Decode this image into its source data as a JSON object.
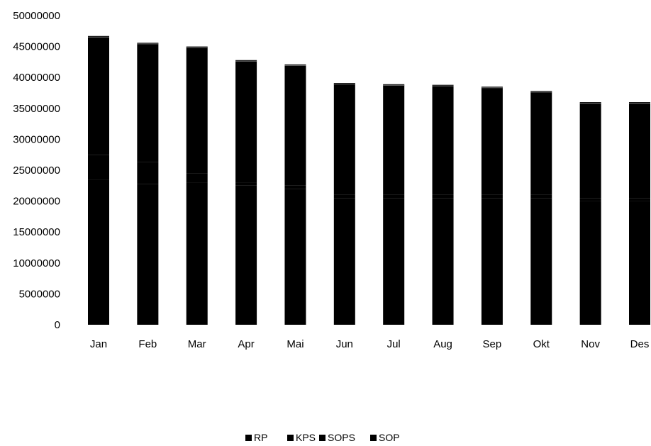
{
  "chart_data": {
    "type": "bar",
    "stacked": true,
    "title": "",
    "xlabel": "",
    "ylabel": "",
    "categories": [
      "Jan",
      "Feb",
      "Mar",
      "Apr",
      "Mai",
      "Jun",
      "Jul",
      "Aug",
      "Sep",
      "Okt",
      "Nov",
      "Des"
    ],
    "ylim": [
      0,
      50000000
    ],
    "yticks": [
      "0",
      "5000000",
      "10000000",
      "15000000",
      "20000000",
      "25000000",
      "30000000",
      "35000000",
      "40000000",
      "45000000",
      "50000000"
    ],
    "grid": false,
    "legend_position": "bottom",
    "series": [
      {
        "name": "RP",
        "color": "#000000",
        "values": [
          23500000,
          22800000,
          23000000,
          22500000,
          22000000,
          20500000,
          20500000,
          20500000,
          20500000,
          20500000,
          20000000,
          20000000
        ]
      },
      {
        "name": "KPS",
        "color": "#000000",
        "values": [
          4000000,
          3500000,
          1500000,
          500000,
          500000,
          500000,
          500000,
          500000,
          500000,
          500000,
          500000,
          500000
        ]
      },
      {
        "name": "SOPS",
        "color": "#000000",
        "values": [
          19200000,
          19300000,
          20500000,
          19800000,
          19600000,
          18100000,
          17900000,
          17800000,
          17500000,
          16800000,
          15500000,
          15500000
        ]
      },
      {
        "name": "SOP",
        "color": "#000000",
        "values": [
          0,
          0,
          0,
          0,
          0,
          0,
          0,
          0,
          0,
          0,
          0,
          0
        ]
      }
    ],
    "totals": [
      46700000,
      45600000,
      45000000,
      42800000,
      42100000,
      39100000,
      38900000,
      38800000,
      38500000,
      37800000,
      36000000,
      36000000
    ]
  }
}
